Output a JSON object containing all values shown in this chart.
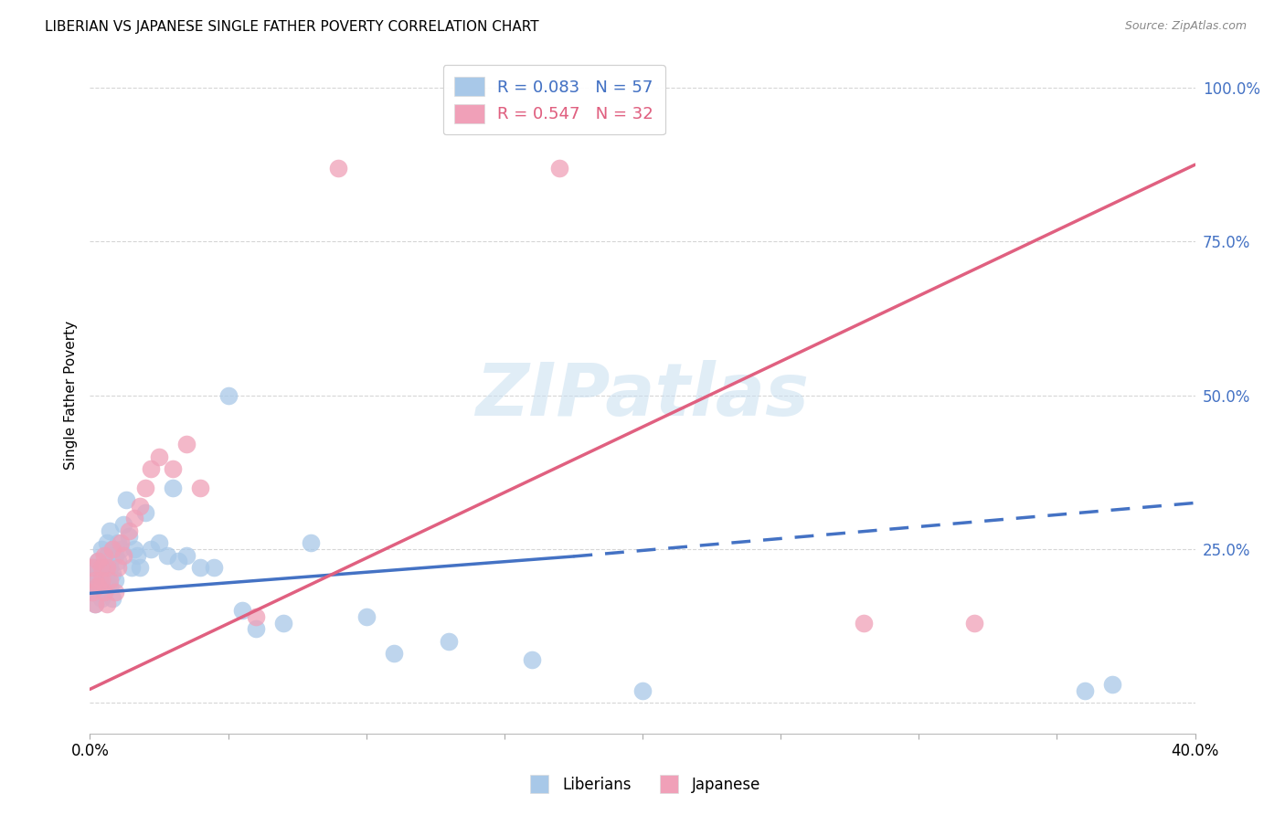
{
  "title": "LIBERIAN VS JAPANESE SINGLE FATHER POVERTY CORRELATION CHART",
  "source": "Source: ZipAtlas.com",
  "ylabel": "Single Father Poverty",
  "watermark": "ZIPatlas",
  "xlim": [
    0.0,
    0.4
  ],
  "ylim": [
    -0.05,
    1.05
  ],
  "liberian_R": 0.083,
  "liberian_N": 57,
  "japanese_R": 0.547,
  "japanese_N": 32,
  "liberian_color": "#a8c8e8",
  "japanese_color": "#f0a0b8",
  "liberian_line_color": "#4472c4",
  "japanese_line_color": "#e06080",
  "grid_color": "#cccccc",
  "background_color": "#ffffff",
  "lib_trend_x0": 0.0,
  "lib_trend_y0": 0.178,
  "lib_trend_x_solid_end": 0.175,
  "lib_trend_y_solid_end": 0.238,
  "lib_trend_x1": 0.4,
  "lib_trend_y1": 0.325,
  "jap_trend_x0": 0.0,
  "jap_trend_y0": 0.022,
  "jap_trend_x1": 0.4,
  "jap_trend_y1": 0.875,
  "lib_x": [
    0.001,
    0.001,
    0.001,
    0.002,
    0.002,
    0.002,
    0.003,
    0.003,
    0.003,
    0.004,
    0.004,
    0.004,
    0.005,
    0.005,
    0.005,
    0.006,
    0.006,
    0.006,
    0.007,
    0.007,
    0.007,
    0.008,
    0.008,
    0.008,
    0.009,
    0.009,
    0.01,
    0.01,
    0.011,
    0.012,
    0.013,
    0.014,
    0.015,
    0.016,
    0.017,
    0.018,
    0.02,
    0.022,
    0.025,
    0.028,
    0.03,
    0.032,
    0.035,
    0.04,
    0.045,
    0.05,
    0.055,
    0.06,
    0.07,
    0.08,
    0.1,
    0.11,
    0.13,
    0.16,
    0.2,
    0.36,
    0.37
  ],
  "lib_y": [
    0.18,
    0.2,
    0.22,
    0.16,
    0.2,
    0.22,
    0.19,
    0.23,
    0.18,
    0.21,
    0.17,
    0.25,
    0.2,
    0.22,
    0.18,
    0.2,
    0.26,
    0.24,
    0.22,
    0.19,
    0.28,
    0.21,
    0.25,
    0.17,
    0.24,
    0.2,
    0.23,
    0.26,
    0.25,
    0.29,
    0.33,
    0.27,
    0.22,
    0.25,
    0.24,
    0.22,
    0.31,
    0.25,
    0.26,
    0.24,
    0.35,
    0.23,
    0.24,
    0.22,
    0.22,
    0.5,
    0.15,
    0.12,
    0.13,
    0.26,
    0.14,
    0.08,
    0.1,
    0.07,
    0.02,
    0.02,
    0.03
  ],
  "jap_x": [
    0.001,
    0.001,
    0.002,
    0.002,
    0.003,
    0.003,
    0.004,
    0.004,
    0.005,
    0.005,
    0.006,
    0.006,
    0.007,
    0.008,
    0.009,
    0.01,
    0.011,
    0.012,
    0.014,
    0.016,
    0.018,
    0.02,
    0.022,
    0.025,
    0.03,
    0.035,
    0.04,
    0.06,
    0.09,
    0.17,
    0.28,
    0.32
  ],
  "jap_y": [
    0.18,
    0.22,
    0.16,
    0.2,
    0.19,
    0.23,
    0.22,
    0.2,
    0.18,
    0.24,
    0.16,
    0.22,
    0.2,
    0.25,
    0.18,
    0.22,
    0.26,
    0.24,
    0.28,
    0.3,
    0.32,
    0.35,
    0.38,
    0.4,
    0.38,
    0.42,
    0.35,
    0.14,
    0.87,
    0.87,
    0.13,
    0.13
  ]
}
